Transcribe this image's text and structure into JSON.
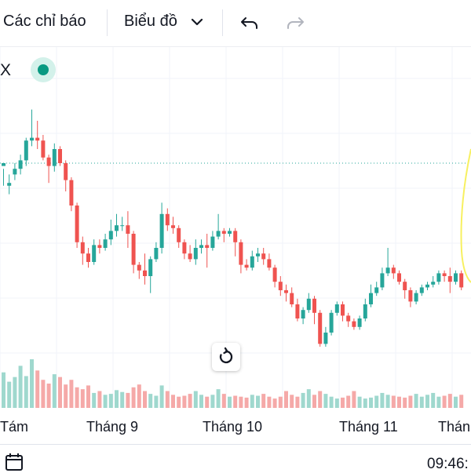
{
  "toolbar": {
    "indicators_label": "Các chỉ báo",
    "chart_type_label": "Biểu đồ",
    "icons": [
      "chevron-down-icon",
      "undo-icon",
      "redo-icon"
    ]
  },
  "symbol": {
    "label": "X"
  },
  "colors": {
    "up": "#26a69a",
    "down": "#ef5350",
    "volume_up": "#9fd8ce",
    "volume_down": "#f5a9a8",
    "price_line": "#26a69a",
    "drawing": "#f7f060"
  },
  "x_axis_labels": [
    "Tám",
    "Tháng 9",
    "Tháng 10",
    "Tháng 11",
    "Thán"
  ],
  "status": {
    "time": "09:46:"
  },
  "chart_data": {
    "type": "candlestick",
    "price_line_level": 0.7,
    "candles": [
      [
        0.69,
        0.7,
        0.68,
        0.62
      ],
      [
        0.62,
        0.63,
        0.66,
        0.59
      ],
      [
        0.66,
        0.68,
        0.7,
        0.64
      ],
      [
        0.68,
        0.71,
        0.73,
        0.66
      ],
      [
        0.71,
        0.78,
        0.79,
        0.69
      ],
      [
        0.78,
        0.79,
        0.89,
        0.76
      ],
      [
        0.79,
        0.78,
        0.85,
        0.75
      ],
      [
        0.78,
        0.72,
        0.8,
        0.71
      ],
      [
        0.72,
        0.69,
        0.73,
        0.63
      ],
      [
        0.69,
        0.75,
        0.77,
        0.67
      ],
      [
        0.75,
        0.7,
        0.76,
        0.69
      ],
      [
        0.7,
        0.64,
        0.71,
        0.6
      ],
      [
        0.64,
        0.55,
        0.65,
        0.53
      ],
      [
        0.55,
        0.42,
        0.56,
        0.4
      ],
      [
        0.42,
        0.38,
        0.44,
        0.34
      ],
      [
        0.38,
        0.35,
        0.4,
        0.33
      ],
      [
        0.35,
        0.41,
        0.43,
        0.34
      ],
      [
        0.41,
        0.4,
        0.43,
        0.38
      ],
      [
        0.4,
        0.43,
        0.45,
        0.39
      ],
      [
        0.43,
        0.46,
        0.5,
        0.41
      ],
      [
        0.46,
        0.48,
        0.52,
        0.44
      ],
      [
        0.48,
        0.48,
        0.51,
        0.46
      ],
      [
        0.48,
        0.45,
        0.53,
        0.4
      ],
      [
        0.45,
        0.34,
        0.46,
        0.31
      ],
      [
        0.34,
        0.32,
        0.35,
        0.29
      ],
      [
        0.32,
        0.3,
        0.38,
        0.27
      ],
      [
        0.3,
        0.36,
        0.37,
        0.24
      ],
      [
        0.36,
        0.4,
        0.42,
        0.35
      ],
      [
        0.4,
        0.52,
        0.56,
        0.38
      ],
      [
        0.52,
        0.48,
        0.54,
        0.46
      ],
      [
        0.48,
        0.47,
        0.51,
        0.45
      ],
      [
        0.47,
        0.42,
        0.48,
        0.4
      ],
      [
        0.42,
        0.38,
        0.43,
        0.36
      ],
      [
        0.38,
        0.36,
        0.41,
        0.35
      ],
      [
        0.36,
        0.4,
        0.43,
        0.34
      ],
      [
        0.4,
        0.41,
        0.43,
        0.38
      ],
      [
        0.41,
        0.4,
        0.45,
        0.33
      ],
      [
        0.4,
        0.44,
        0.46,
        0.39
      ],
      [
        0.44,
        0.46,
        0.52,
        0.43
      ],
      [
        0.46,
        0.45,
        0.47,
        0.42
      ],
      [
        0.45,
        0.46,
        0.47,
        0.44
      ],
      [
        0.46,
        0.42,
        0.47,
        0.37
      ],
      [
        0.42,
        0.34,
        0.43,
        0.31
      ],
      [
        0.34,
        0.33,
        0.36,
        0.32
      ],
      [
        0.33,
        0.37,
        0.39,
        0.32
      ],
      [
        0.37,
        0.38,
        0.4,
        0.35
      ],
      [
        0.38,
        0.36,
        0.4,
        0.34
      ],
      [
        0.36,
        0.33,
        0.38,
        0.32
      ],
      [
        0.33,
        0.28,
        0.34,
        0.26
      ],
      [
        0.28,
        0.25,
        0.3,
        0.23
      ],
      [
        0.25,
        0.24,
        0.27,
        0.21
      ],
      [
        0.24,
        0.2,
        0.26,
        0.19
      ],
      [
        0.2,
        0.15,
        0.22,
        0.14
      ],
      [
        0.15,
        0.18,
        0.19,
        0.13
      ],
      [
        0.18,
        0.22,
        0.24,
        0.17
      ],
      [
        0.22,
        0.17,
        0.23,
        0.13
      ],
      [
        0.17,
        0.06,
        0.18,
        0.05
      ],
      [
        0.06,
        0.1,
        0.12,
        0.05
      ],
      [
        0.1,
        0.17,
        0.18,
        0.09
      ],
      [
        0.17,
        0.2,
        0.21,
        0.16
      ],
      [
        0.2,
        0.16,
        0.21,
        0.14
      ],
      [
        0.16,
        0.14,
        0.17,
        0.12
      ],
      [
        0.14,
        0.12,
        0.15,
        0.11
      ],
      [
        0.12,
        0.15,
        0.16,
        0.11
      ],
      [
        0.15,
        0.2,
        0.22,
        0.14
      ],
      [
        0.2,
        0.24,
        0.27,
        0.19
      ],
      [
        0.24,
        0.26,
        0.28,
        0.23
      ],
      [
        0.26,
        0.31,
        0.33,
        0.25
      ],
      [
        0.31,
        0.33,
        0.4,
        0.3
      ],
      [
        0.33,
        0.31,
        0.34,
        0.29
      ],
      [
        0.31,
        0.28,
        0.32,
        0.27
      ],
      [
        0.28,
        0.25,
        0.29,
        0.22
      ],
      [
        0.25,
        0.21,
        0.26,
        0.19
      ],
      [
        0.21,
        0.24,
        0.25,
        0.2
      ],
      [
        0.24,
        0.26,
        0.27,
        0.23
      ],
      [
        0.26,
        0.27,
        0.28,
        0.25
      ],
      [
        0.27,
        0.28,
        0.3,
        0.26
      ],
      [
        0.28,
        0.31,
        0.32,
        0.27
      ],
      [
        0.31,
        0.3,
        0.32,
        0.28
      ],
      [
        0.3,
        0.28,
        0.33,
        0.24
      ],
      [
        0.28,
        0.31,
        0.32,
        0.27
      ],
      [
        0.31,
        0.26,
        0.32,
        0.25
      ]
    ],
    "volume": [
      0.38,
      0.28,
      0.33,
      0.45,
      0.34,
      0.52,
      0.4,
      0.3,
      0.26,
      0.36,
      0.33,
      0.25,
      0.3,
      0.22,
      0.2,
      0.24,
      0.16,
      0.18,
      0.14,
      0.15,
      0.19,
      0.17,
      0.16,
      0.22,
      0.25,
      0.18,
      0.15,
      0.13,
      0.24,
      0.18,
      0.14,
      0.12,
      0.13,
      0.15,
      0.18,
      0.14,
      0.12,
      0.14,
      0.2,
      0.15,
      0.12,
      0.13,
      0.12,
      0.11,
      0.14,
      0.13,
      0.15,
      0.12,
      0.1,
      0.12,
      0.18,
      0.14,
      0.12,
      0.16,
      0.2,
      0.14,
      0.18,
      0.15,
      0.12,
      0.1,
      0.11,
      0.13,
      0.18,
      0.12,
      0.1,
      0.11,
      0.13,
      0.16,
      0.14,
      0.13,
      0.12,
      0.11,
      0.13,
      0.15,
      0.12,
      0.14,
      0.16,
      0.12,
      0.13,
      0.15,
      0.12,
      0.14
    ]
  }
}
